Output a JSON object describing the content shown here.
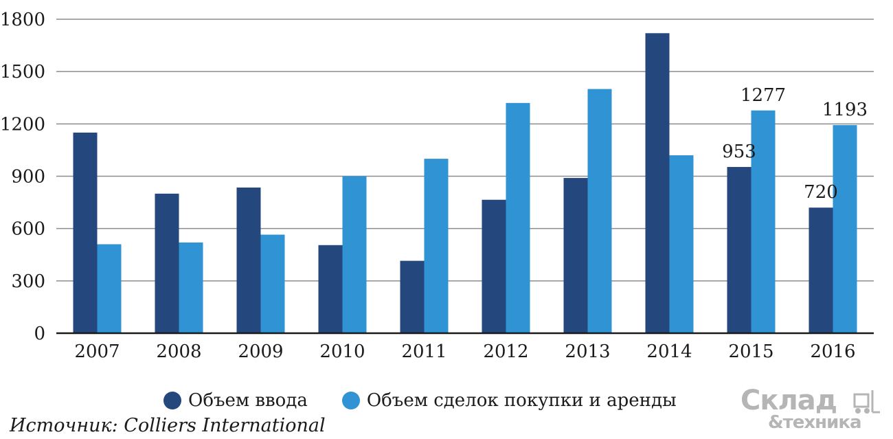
{
  "chart_data": {
    "type": "bar",
    "categories": [
      "2007",
      "2008",
      "2009",
      "2010",
      "2011",
      "2012",
      "2013",
      "2014",
      "2015",
      "2016"
    ],
    "series": [
      {
        "name": "Объем ввода",
        "values": [
          1150,
          800,
          835,
          505,
          415,
          765,
          890,
          1720,
          953,
          720
        ],
        "color": "#24477d"
      },
      {
        "name": "Объем сделок покупки и аренды",
        "values": [
          510,
          520,
          565,
          900,
          1000,
          1320,
          1400,
          1020,
          1277,
          1193
        ],
        "color": "#3093d3"
      }
    ],
    "data_labels": [
      {
        "series": 0,
        "index": 8,
        "text": "953"
      },
      {
        "series": 1,
        "index": 8,
        "text": "1277"
      },
      {
        "series": 0,
        "index": 9,
        "text": "720"
      },
      {
        "series": 1,
        "index": 9,
        "text": "1193"
      }
    ],
    "yticks": [
      "0",
      "300",
      "600",
      "900",
      "1200",
      "1500",
      "1800"
    ],
    "ylim": [
      0,
      1800
    ],
    "grid": true,
    "legend_position": "bottom",
    "title": "",
    "xlabel": "",
    "ylabel": ""
  },
  "legend": {
    "items": [
      {
        "label": "Объем ввода",
        "color": "#24477d"
      },
      {
        "label": "Объем сделок покупки и аренды",
        "color": "#3093d3"
      }
    ]
  },
  "source": "Источник: Colliers International",
  "logo": {
    "top": "Склад",
    "bottom": "&техника"
  }
}
